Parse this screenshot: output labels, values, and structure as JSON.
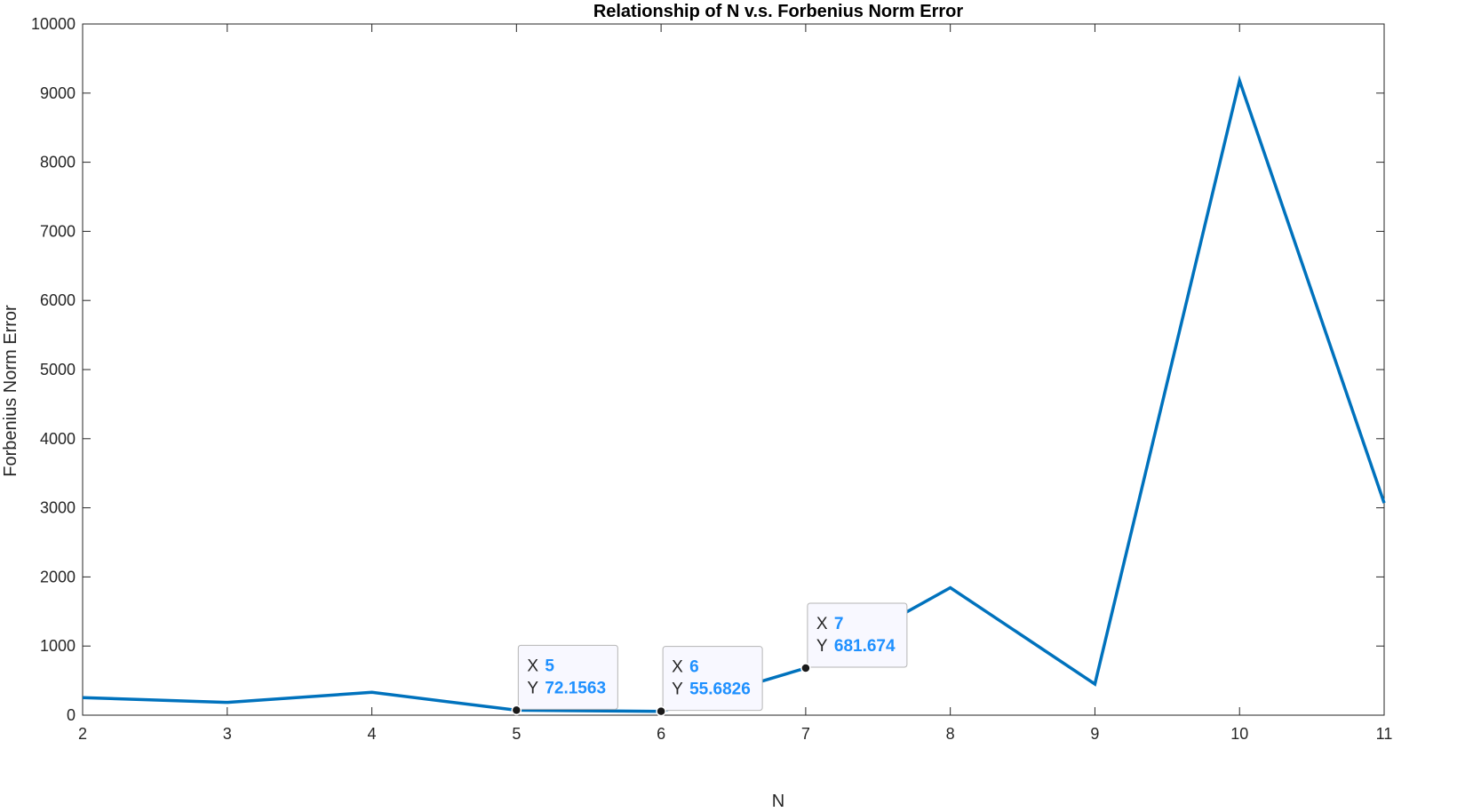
{
  "colors": {
    "line": "#0072bd",
    "axis": "#262626",
    "marker": "#1a1a1a",
    "tip_value": "#1e90ff"
  },
  "chart_data": {
    "type": "line",
    "title": "Relationship of N v.s. Forbenius Norm Error",
    "xlabel": "N",
    "ylabel": "Forbenius Norm Error",
    "xlim": [
      2,
      11
    ],
    "ylim": [
      0,
      10000
    ],
    "xticks": [
      2,
      3,
      4,
      5,
      6,
      7,
      8,
      9,
      10,
      11
    ],
    "yticks": [
      0,
      1000,
      2000,
      3000,
      4000,
      5000,
      6000,
      7000,
      8000,
      9000,
      10000
    ],
    "grid": false,
    "series": [
      {
        "x": [
          2,
          3,
          4,
          5,
          6,
          7,
          8,
          9,
          10,
          11
        ],
        "y": [
          255,
          185,
          330,
          72.1563,
          55.6826,
          681.674,
          1845,
          450,
          9180,
          3070
        ]
      }
    ],
    "datatips": [
      {
        "x_label": "X",
        "y_label": "Y",
        "x": 5,
        "y": 72.1563,
        "x_text": "5",
        "y_text": "72.1563"
      },
      {
        "x_label": "X",
        "y_label": "Y",
        "x": 6,
        "y": 55.6826,
        "x_text": "6",
        "y_text": "55.6826"
      },
      {
        "x_label": "X",
        "y_label": "Y",
        "x": 7,
        "y": 681.674,
        "x_text": "7",
        "y_text": "681.674"
      }
    ]
  }
}
